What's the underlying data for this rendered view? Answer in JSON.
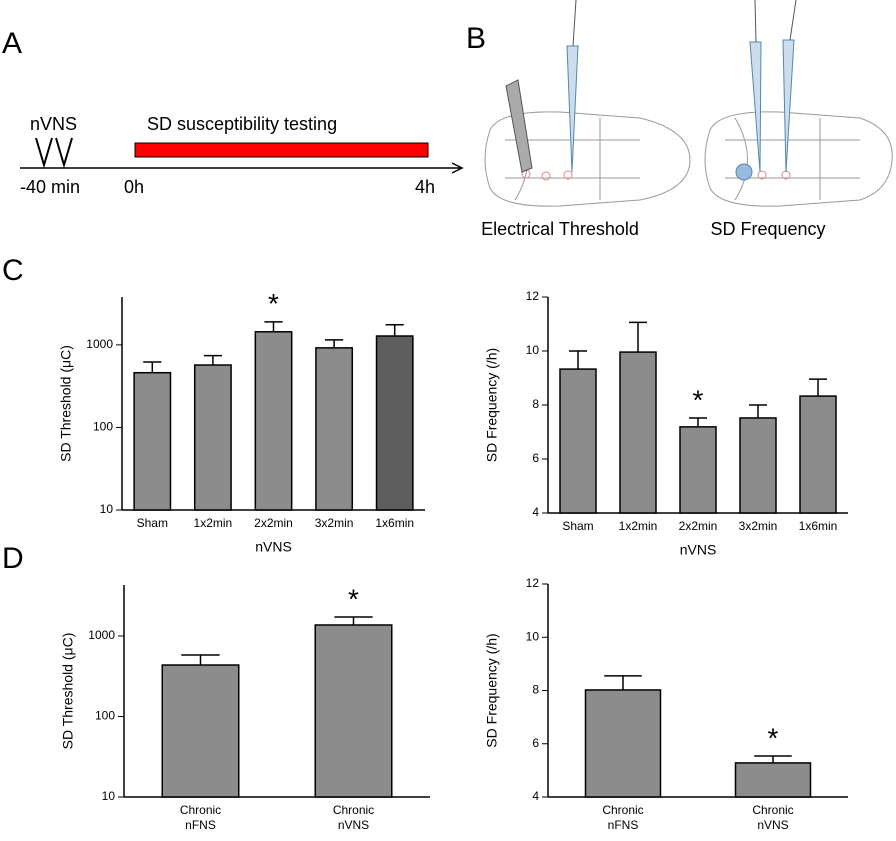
{
  "panels": [
    "A",
    "B",
    "C",
    "D"
  ],
  "timeline": {
    "treatment": "nVNS",
    "bar_label": "SD susceptibility testing",
    "start": "-40 min",
    "zero": "0h",
    "end": "4h"
  },
  "diagram": {
    "left": "Electrical Threshold",
    "right": "SD Frequency"
  },
  "chart_data": [
    {
      "type": "bar",
      "ylabel": "SD Threshold (μC)",
      "xlabel": "nVNS",
      "log_scale": true,
      "categories": [
        [
          "Sham"
        ],
        [
          "1x2min"
        ],
        [
          "2x2min"
        ],
        [
          "3x2min"
        ],
        [
          "1x6min"
        ]
      ],
      "values": [
        460,
        570,
        1440,
        920,
        1280
      ],
      "errors": [
        160,
        170,
        460,
        230,
        470
      ],
      "colors": [
        "#8c8c8c",
        "#8c8c8c",
        "#8c8c8c",
        "#8c8c8c",
        "#5e5e5e"
      ],
      "value_annotations": [
        null,
        null,
        "*",
        null,
        null
      ],
      "ylim": [
        10,
        3800
      ],
      "yticks": [
        10,
        100,
        1000
      ]
    },
    {
      "type": "bar",
      "ylabel": "SD Frequency (/h)",
      "xlabel": "nVNS",
      "log_scale": false,
      "categories": [
        [
          "Sham"
        ],
        [
          "1x2min"
        ],
        [
          "2x2min"
        ],
        [
          "3x2min"
        ],
        [
          "1x6min"
        ]
      ],
      "values": [
        9.33,
        9.96,
        7.19,
        7.52,
        8.33
      ],
      "errors": [
        0.67,
        1.1,
        0.33,
        0.48,
        0.63
      ],
      "colors": [
        "#8c8c8c",
        "#8c8c8c",
        "#8c8c8c",
        "#8c8c8c",
        "#8c8c8c"
      ],
      "value_annotations": [
        null,
        null,
        "*",
        null,
        null
      ],
      "ylim": [
        4,
        12
      ],
      "yticks": [
        4,
        6,
        8,
        10,
        12
      ]
    },
    {
      "type": "bar",
      "ylabel": "SD Threshold (μC)",
      "log_scale": true,
      "categories": [
        [
          "Chronic",
          "nFNS"
        ],
        [
          "Chronic",
          "nVNS"
        ]
      ],
      "values": [
        436,
        1370
      ],
      "errors": [
        144,
        350
      ],
      "colors": [
        "#8c8c8c",
        "#8c8c8c"
      ],
      "value_annotations": [
        null,
        "*"
      ],
      "ylim": [
        10,
        4300
      ],
      "yticks": [
        10,
        100,
        1000
      ]
    },
    {
      "type": "bar",
      "ylabel": "SD Frequency (/h)",
      "log_scale": false,
      "categories": [
        [
          "Chronic",
          "nFNS"
        ],
        [
          "Chronic",
          "nVNS"
        ]
      ],
      "values": [
        8.02,
        5.28
      ],
      "errors": [
        0.53,
        0.26
      ],
      "colors": [
        "#8c8c8c",
        "#8c8c8c"
      ],
      "value_annotations": [
        null,
        "*"
      ],
      "ylim": [
        4,
        12
      ],
      "yticks": [
        4,
        6,
        8,
        10,
        12
      ]
    }
  ]
}
